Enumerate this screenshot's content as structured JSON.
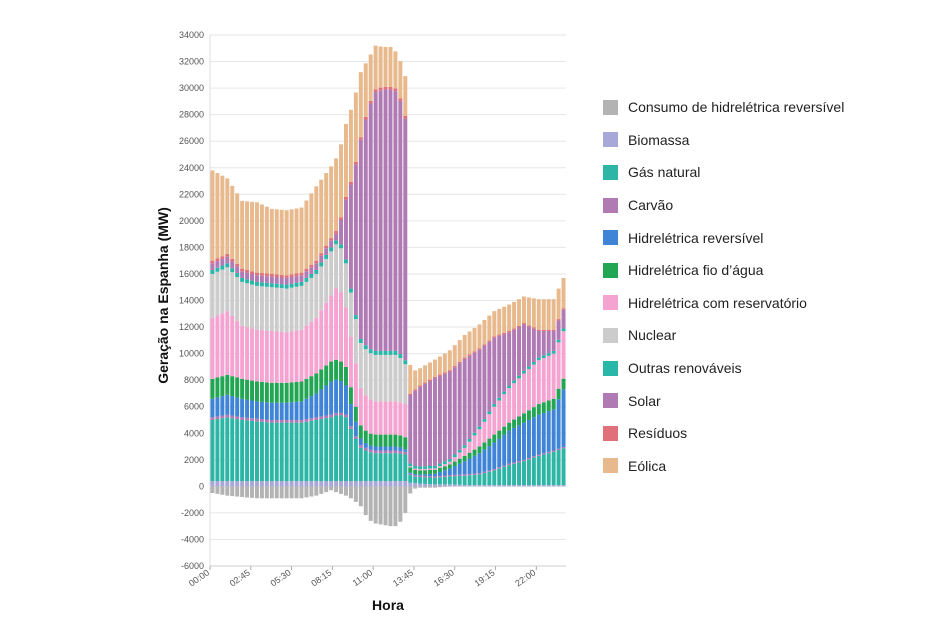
{
  "chart_data": {
    "type": "bar",
    "stacked": true,
    "xlabel": "Hora",
    "ylabel": "Geração na Espanha (MW)",
    "ylim": [
      -6000,
      34000
    ],
    "yticks": [
      34000,
      32000,
      30000,
      28000,
      26000,
      24000,
      22000,
      20000,
      18000,
      16000,
      14000,
      12000,
      10000,
      8000,
      6000,
      4000,
      2000,
      0,
      -2000,
      -4000,
      -6000
    ],
    "xtick_labels": [
      "00:00",
      "02:45",
      "05:30",
      "08:15",
      "11:00",
      "13:45",
      "16:30",
      "19:15",
      "22:00"
    ],
    "grid": true,
    "legend_position": "right",
    "keyframes": {
      "x": [
        "00:00",
        "01:00",
        "02:00",
        "03:00",
        "04:00",
        "05:00",
        "06:00",
        "07:00",
        "08:00",
        "08:30",
        "09:00",
        "09:30",
        "10:00",
        "10:30",
        "11:00",
        "11:30",
        "12:00",
        "12:30",
        "13:00",
        "13:15",
        "13:30",
        "14:00",
        "15:00",
        "16:00",
        "17:00",
        "18:00",
        "19:00",
        "20:00",
        "21:00",
        "22:00",
        "23:00",
        "23:45"
      ],
      "series": [
        {
          "name": "Consumo de hidrelétrica reversível",
          "color": "#b3b3b3",
          "values": [
            -500,
            -700,
            -800,
            -900,
            -900,
            -900,
            -900,
            -700,
            -300,
            -500,
            -700,
            -1000,
            -1500,
            -2500,
            -2800,
            -2900,
            -3000,
            -3000,
            -2000,
            -700,
            -200,
            -100,
            -100,
            0,
            0,
            0,
            0,
            0,
            0,
            0,
            0,
            0
          ]
        },
        {
          "name": "Biomassa",
          "color": "#a8a8d8",
          "values": [
            400,
            400,
            400,
            400,
            400,
            400,
            400,
            400,
            400,
            400,
            400,
            400,
            400,
            400,
            400,
            400,
            400,
            400,
            400,
            300,
            250,
            200,
            150,
            150,
            100,
            100,
            100,
            100,
            100,
            100,
            100,
            100
          ]
        },
        {
          "name": "Gás natural",
          "color": "#2db5a5",
          "values": [
            4600,
            4800,
            4600,
            4500,
            4400,
            4400,
            4400,
            4600,
            4800,
            5000,
            4800,
            3500,
            2500,
            2200,
            2100,
            2100,
            2100,
            2100,
            2000,
            600,
            500,
            500,
            500,
            600,
            700,
            800,
            1100,
            1500,
            1800,
            2200,
            2500,
            2800
          ]
        },
        {
          "name": "Carvão",
          "color": "#b07ab5",
          "values": [
            200,
            200,
            200,
            200,
            200,
            200,
            200,
            200,
            200,
            200,
            200,
            200,
            200,
            200,
            200,
            200,
            200,
            200,
            200,
            100,
            100,
            100,
            100,
            100,
            100,
            100,
            100,
            100,
            100,
            100,
            100,
            100
          ]
        },
        {
          "name": "Hidrelétrica reversível",
          "color": "#3f84d6",
          "values": [
            1400,
            1500,
            1400,
            1300,
            1300,
            1300,
            1400,
            1800,
            2500,
            2500,
            2200,
            1400,
            500,
            300,
            300,
            300,
            300,
            300,
            200,
            100,
            100,
            100,
            200,
            500,
            1000,
            1500,
            2000,
            2500,
            2800,
            3000,
            3100,
            4500
          ]
        },
        {
          "name": "Hidrelétrica fio d’água",
          "color": "#23a653",
          "values": [
            1500,
            1500,
            1500,
            1500,
            1500,
            1500,
            1500,
            1500,
            1500,
            1500,
            1400,
            1200,
            1000,
            900,
            900,
            900,
            900,
            900,
            900,
            400,
            300,
            300,
            300,
            300,
            400,
            500,
            600,
            600,
            700,
            800,
            800,
            800
          ]
        },
        {
          "name": "Hidrelétrica com reservatório",
          "color": "#f5a3d0",
          "values": [
            4600,
            4800,
            4000,
            3900,
            3900,
            3800,
            3900,
            4200,
            5000,
            5600,
            4500,
            3500,
            2800,
            2600,
            2500,
            2500,
            2500,
            2500,
            2500,
            100,
            100,
            100,
            100,
            200,
            600,
            1300,
            2100,
            2600,
            3000,
            3300,
            3400,
            3600
          ]
        },
        {
          "name": "Nuclear",
          "color": "#cccccc",
          "values": [
            3300,
            3300,
            3300,
            3300,
            3300,
            3300,
            3300,
            3300,
            3300,
            3300,
            3300,
            3300,
            3400,
            3500,
            3500,
            3500,
            3500,
            3500,
            3000,
            0,
            0,
            0,
            0,
            0,
            0,
            0,
            0,
            0,
            0,
            0,
            0,
            0
          ]
        },
        {
          "name": "Outras renováveis",
          "color": "#28b7a9",
          "values": [
            300,
            300,
            300,
            300,
            300,
            300,
            300,
            300,
            300,
            300,
            300,
            300,
            300,
            300,
            300,
            300,
            300,
            300,
            300,
            200,
            200,
            200,
            200,
            200,
            200,
            200,
            200,
            200,
            200,
            200,
            200,
            200
          ]
        },
        {
          "name": "Solar",
          "color": "#b07ab5",
          "values": [
            500,
            500,
            500,
            500,
            500,
            500,
            500,
            500,
            500,
            500,
            4500,
            9500,
            15000,
            18000,
            19500,
            19700,
            19700,
            19500,
            18200,
            5000,
            5500,
            6000,
            6600,
            6600,
            6500,
            5800,
            5000,
            4000,
            3500,
            2000,
            1500,
            1400
          ]
        },
        {
          "name": "Resíduos",
          "color": "#e0707a",
          "values": [
            200,
            200,
            200,
            200,
            200,
            200,
            200,
            200,
            200,
            200,
            200,
            200,
            200,
            200,
            200,
            200,
            200,
            200,
            200,
            100,
            100,
            100,
            100,
            100,
            100,
            100,
            100,
            100,
            100,
            100,
            100,
            100
          ]
        },
        {
          "name": "Eólica",
          "color": "#e8b98c",
          "values": [
            6800,
            5700,
            5100,
            5300,
            4900,
            4900,
            4900,
            5600,
            5400,
            5500,
            5500,
            5400,
            4900,
            3600,
            3300,
            3000,
            3000,
            2700,
            3000,
            2500,
            1500,
            1300,
            1300,
            1500,
            1700,
            1800,
            1900,
            2000,
            2000,
            2300,
            2300,
            2300
          ]
        }
      ]
    }
  }
}
